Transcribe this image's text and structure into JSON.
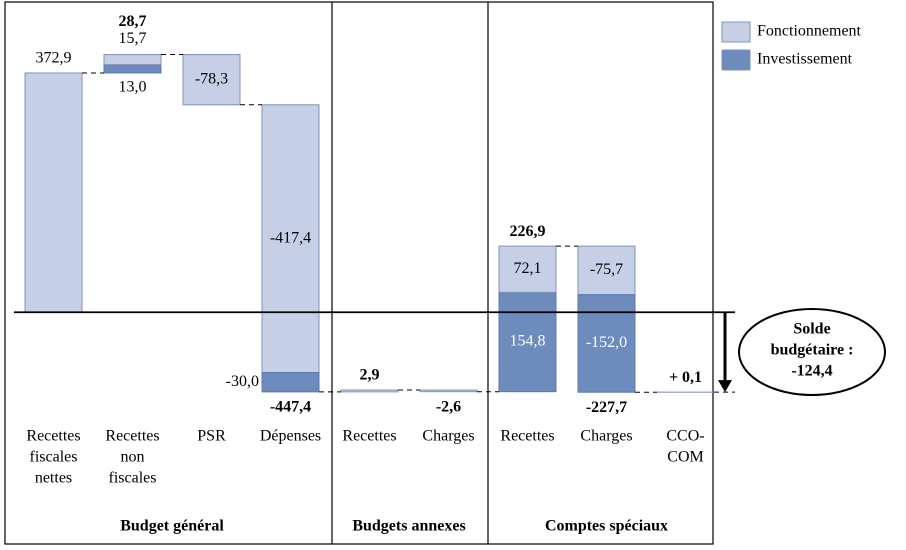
{
  "chart_data": {
    "type": "waterfall",
    "categories": [
      [
        "Recettes",
        "fiscales",
        "nettes"
      ],
      [
        "Recettes",
        "non",
        "fiscales"
      ],
      [
        "PSR"
      ],
      [
        "Dépenses"
      ],
      [
        "Recettes"
      ],
      [
        "Charges"
      ],
      [
        "Recettes"
      ],
      [
        "Charges"
      ],
      [
        "CCO-",
        "COM"
      ]
    ],
    "category_groups": [
      "Budget général",
      "Budget général",
      "Budget général",
      "Budget général",
      "Budgets annexes",
      "Budgets annexes",
      "Comptes spéciaux",
      "Comptes spéciaux",
      "Comptes spéciaux"
    ],
    "series": [
      {
        "name": "Fonctionnement",
        "color": "#c5d0e6",
        "values": [
          372.9,
          15.7,
          -78.3,
          -417.4,
          2.9,
          -2.6,
          72.1,
          -75.7,
          0.1
        ],
        "value_labels": [
          "372,9",
          "15,7",
          "-78,3",
          "-417,4",
          null,
          null,
          "72,1",
          "-75,7",
          null
        ]
      },
      {
        "name": "Investissement",
        "color": "#6d8bbd",
        "values": [
          null,
          13.0,
          null,
          -30.0,
          null,
          null,
          154.8,
          -152.0,
          null
        ],
        "value_labels": [
          null,
          "13,0",
          null,
          "-30,0",
          null,
          null,
          "154,8",
          "-152,0",
          null
        ]
      }
    ],
    "totals": [
      null,
      28.7,
      null,
      -447.4,
      2.9,
      -2.6,
      226.9,
      -227.7,
      0.1
    ],
    "total_labels": [
      null,
      "28,7",
      null,
      "-447,4",
      "2,9",
      "-2,6",
      "226,9",
      "-227,7",
      "+ 0,1"
    ],
    "annotation": {
      "label": [
        "Solde",
        "budgétaire :"
      ],
      "value": -124.4,
      "value_label": "-124,4"
    },
    "ylim": [
      -150,
      450
    ]
  }
}
